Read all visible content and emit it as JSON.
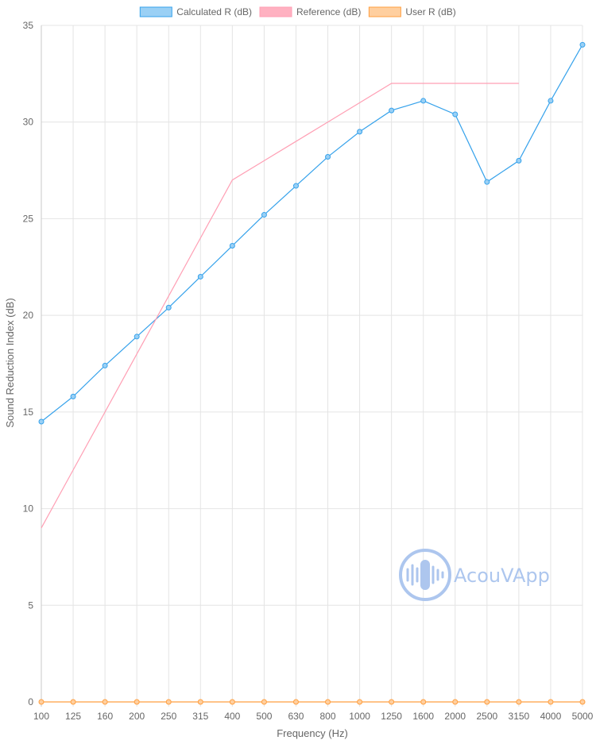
{
  "chart_data": {
    "type": "line",
    "categories": [
      "100",
      "125",
      "160",
      "200",
      "250",
      "315",
      "400",
      "500",
      "630",
      "800",
      "1000",
      "1250",
      "1600",
      "2000",
      "2500",
      "3150",
      "4000",
      "5000"
    ],
    "series": [
      {
        "name": "Calculated R (dB)",
        "values": [
          14.5,
          15.8,
          17.4,
          18.9,
          20.4,
          22.0,
          23.6,
          25.2,
          26.7,
          28.2,
          29.5,
          30.6,
          31.1,
          30.4,
          26.9,
          28.0,
          31.1,
          34.0
        ],
        "color": "#36a2eb",
        "fill": "#9ad0f5",
        "markers": true
      },
      {
        "name": "Reference (dB)",
        "values": [
          9,
          12,
          15,
          18,
          21,
          24,
          27,
          28,
          29,
          30,
          31,
          32,
          32,
          32,
          32,
          32,
          null,
          null
        ],
        "color": "#ff9fb4",
        "fill": "#ffb1c1",
        "markers": false
      },
      {
        "name": "User R (dB)",
        "values": [
          0,
          0,
          0,
          0,
          0,
          0,
          0,
          0,
          0,
          0,
          0,
          0,
          0,
          0,
          0,
          0,
          0,
          0
        ],
        "color": "#ff9f40",
        "fill": "#ffcf9f",
        "markers": true
      }
    ],
    "xlabel": "Frequency (Hz)",
    "ylabel": "Sound Reduction Index (dB)",
    "ylim": [
      0,
      35
    ],
    "yticks": [
      0,
      5,
      10,
      15,
      20,
      25,
      30,
      35
    ],
    "grid": true,
    "legend": "top"
  },
  "watermark": {
    "text": "AcouVApp",
    "icon": "sound-wave-logo-icon"
  }
}
